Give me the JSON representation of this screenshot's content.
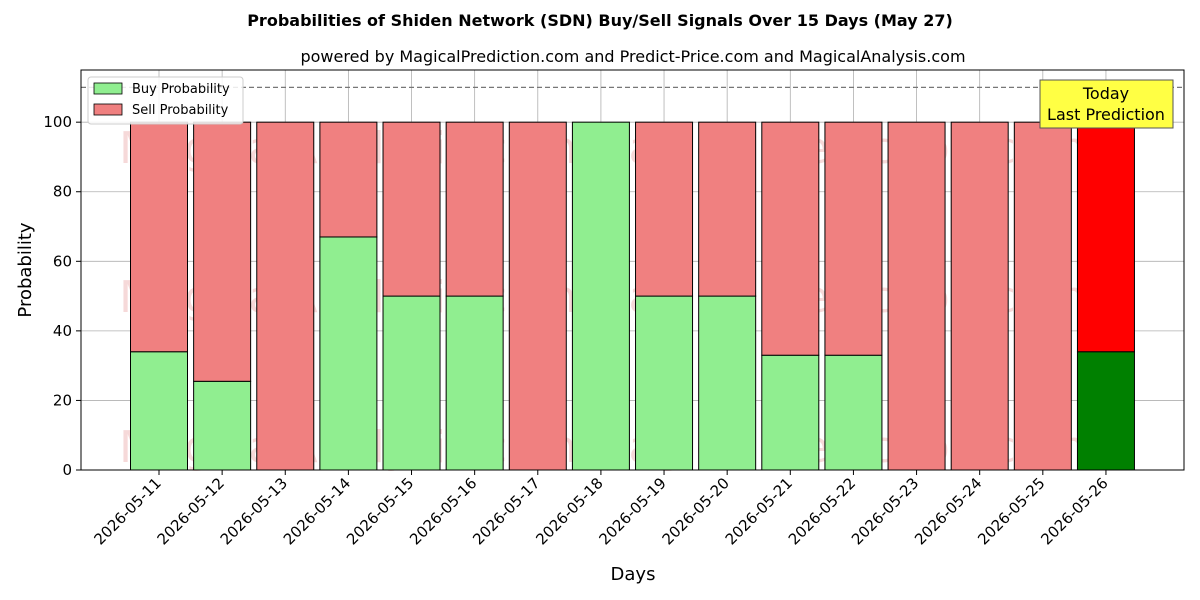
{
  "chart_data": {
    "type": "bar",
    "stacked": true,
    "title": "Probabilities of Shiden Network (SDN) Buy/Sell Signals Over 15 Days (May 27)",
    "subtitle": "powered by MagicalPrediction.com and Predict-Price.com and MagicalAnalysis.com",
    "xlabel": "Days",
    "ylabel": "Probability",
    "ylim": [
      0,
      115
    ],
    "yticks": [
      0,
      20,
      40,
      60,
      80,
      100
    ],
    "grid": true,
    "legend_position": "top-left",
    "reference_line": {
      "y": 110,
      "style": "dashed"
    },
    "categories": [
      "2026-05-11",
      "2026-05-12",
      "2026-05-13",
      "2026-05-14",
      "2026-05-15",
      "2026-05-16",
      "2026-05-17",
      "2026-05-18",
      "2026-05-19",
      "2026-05-20",
      "2026-05-21",
      "2026-05-22",
      "2026-05-23",
      "2026-05-24",
      "2026-05-25",
      "2026-05-26"
    ],
    "series": [
      {
        "name": "Buy Probability",
        "color": "#90ee90",
        "highlight_color": "#008000",
        "values": [
          34,
          25.5,
          0,
          67,
          50,
          50,
          0,
          100,
          50,
          50,
          33,
          33,
          0,
          0,
          0,
          34
        ]
      },
      {
        "name": "Sell Probability",
        "color": "#f08080",
        "highlight_color": "#ff0000",
        "values": [
          66,
          74.5,
          100,
          33,
          50,
          50,
          100,
          0,
          50,
          50,
          67,
          67,
          100,
          100,
          100,
          66
        ]
      }
    ],
    "highlight_index": 15,
    "annotation": {
      "lines": [
        "Today",
        "Last Prediction"
      ],
      "background": "#ffff44"
    },
    "watermarks": [
      "MagicalAnalysis.com",
      "MagicalPrediction.com"
    ]
  }
}
